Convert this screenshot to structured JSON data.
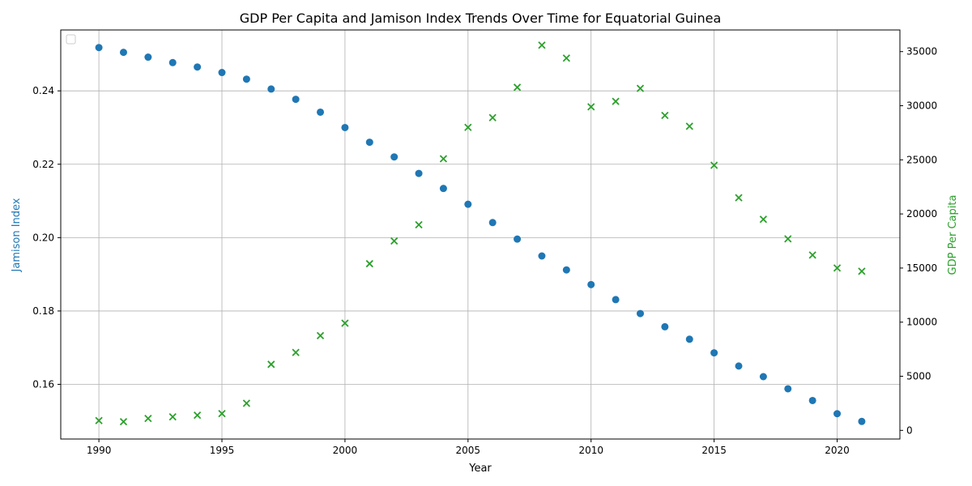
{
  "chart_data": {
    "type": "scatter",
    "title": "GDP Per Capita and Jamison Index Trends Over Time for Equatorial Guinea",
    "xlabel": "Year",
    "ylabel_left": "Jamison Index",
    "ylabel_right": "GDP Per Capita",
    "xlim": [
      1988.45,
      2022.55
    ],
    "ylim_left": [
      0.1451,
      0.2566
    ],
    "ylim_right": [
      -800,
      37000
    ],
    "x_ticks": [
      1990,
      1995,
      2000,
      2005,
      2010,
      2015,
      2020
    ],
    "y_left_ticks": [
      0.16,
      0.18,
      0.2,
      0.22,
      0.24
    ],
    "y_left_tick_labels": [
      "0.16",
      "0.18",
      "0.20",
      "0.22",
      "0.24"
    ],
    "y_right_ticks": [
      0,
      5000,
      10000,
      15000,
      20000,
      25000,
      30000,
      35000
    ],
    "y_right_tick_labels": [
      "0",
      "5000",
      "10000",
      "15000",
      "20000",
      "25000",
      "30000",
      "35000"
    ],
    "grid": true,
    "legend": "top-left, empty",
    "colors": {
      "jamison": "#1f77b4",
      "gdp": "#2ca02c",
      "grid": "#b0b0b0",
      "axis": "#000000"
    },
    "years": [
      1990,
      1991,
      1992,
      1993,
      1994,
      1995,
      1996,
      1997,
      1998,
      1999,
      2000,
      2001,
      2002,
      2003,
      2004,
      2005,
      2006,
      2007,
      2008,
      2009,
      2010,
      2011,
      2012,
      2013,
      2014,
      2015,
      2016,
      2017,
      2018,
      2019,
      2020,
      2021
    ],
    "series": [
      {
        "key": "jamison",
        "axis": "left",
        "marker": "circle",
        "values": [
          0.2518,
          0.2505,
          0.2492,
          0.2477,
          0.2465,
          0.245,
          0.2432,
          0.2405,
          0.2377,
          0.2342,
          0.23,
          0.226,
          0.222,
          0.2175,
          0.2134,
          0.2091,
          0.2041,
          0.1996,
          0.195,
          0.1912,
          0.1872,
          0.1831,
          0.1793,
          0.1757,
          0.1723,
          0.1686,
          0.165,
          0.1621,
          0.1588,
          0.1556,
          0.152,
          0.1499
        ]
      },
      {
        "key": "gdp",
        "axis": "right",
        "marker": "x",
        "values": [
          900,
          800,
          1100,
          1250,
          1400,
          1550,
          2500,
          6100,
          7200,
          8750,
          9900,
          15400,
          17500,
          19000,
          25100,
          28000,
          28900,
          31700,
          35600,
          34400,
          29900,
          30400,
          31600,
          29100,
          28100,
          24500,
          21500,
          19500,
          17700,
          16200,
          15000,
          14700
        ]
      }
    ]
  }
}
